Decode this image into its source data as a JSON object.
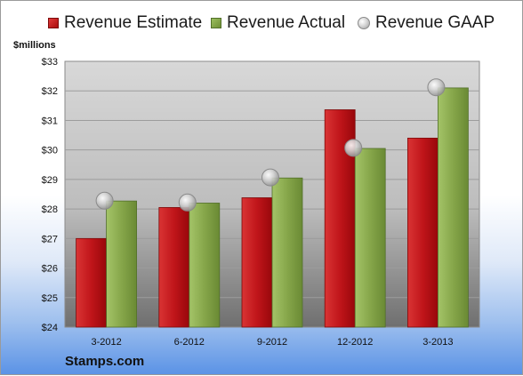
{
  "unit_label": "$millions",
  "brand": "Stamps.com",
  "colors": {
    "estimate": "#c0151a",
    "actual": "#86a64a",
    "gaap": "#c8c8c8"
  },
  "chart_data": {
    "type": "bar",
    "categories": [
      "3-2012",
      "6-2012",
      "9-2012",
      "12-2012",
      "3-2013"
    ],
    "series": [
      {
        "name": "Revenue Estimate",
        "kind": "bar",
        "values": [
          27.0,
          28.05,
          28.38,
          31.36,
          30.4
        ]
      },
      {
        "name": "Revenue Actual",
        "kind": "bar",
        "values": [
          28.27,
          28.2,
          29.05,
          30.05,
          32.1
        ]
      },
      {
        "name": "Revenue GAAP",
        "kind": "marker",
        "values": [
          28.28,
          28.22,
          29.07,
          30.07,
          32.12
        ]
      }
    ],
    "y_ticks": [
      "$24",
      "$25",
      "$26",
      "$27",
      "$28",
      "$29",
      "$30",
      "$31",
      "$32",
      "$33"
    ],
    "ylim": [
      24,
      33
    ],
    "grid": true,
    "legend": "top"
  }
}
